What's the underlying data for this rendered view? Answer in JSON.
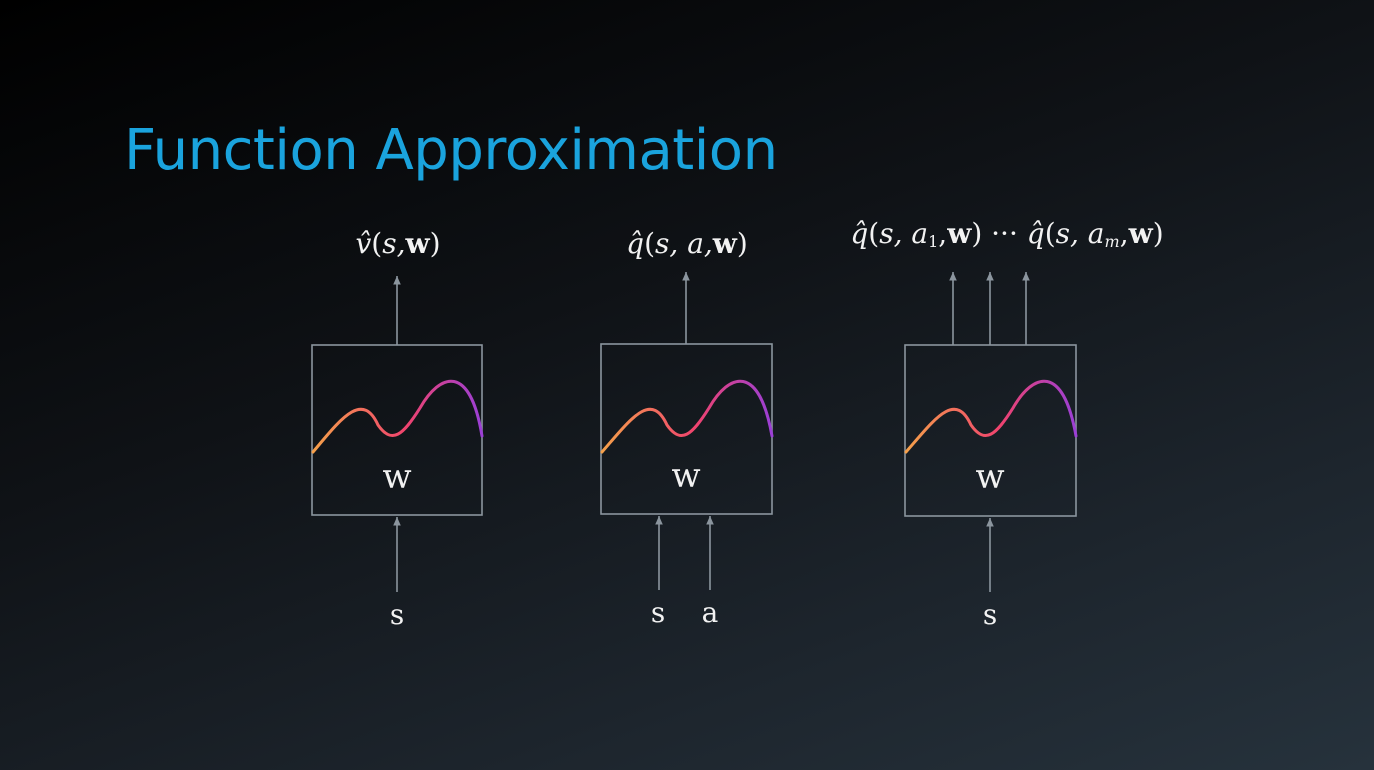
{
  "title": "Function Approximation",
  "diagrams": [
    {
      "name": "state-value",
      "output": {
        "fn": "v",
        "args": "s,",
        "weight": "w",
        "close": ")"
      },
      "box_label": "w",
      "inputs": [
        "s"
      ]
    },
    {
      "name": "action-value",
      "output": {
        "fn": "q",
        "args": "s, a,",
        "weight": "w",
        "close": ")"
      },
      "box_label": "w",
      "inputs": [
        "s",
        "a"
      ]
    },
    {
      "name": "multi-action-value",
      "output_first": {
        "fn": "q",
        "args": "s, a",
        "sub": "1",
        "comma": ",",
        "weight": "w",
        "close": ")"
      },
      "ellipsis": "···",
      "output_last": {
        "fn": "q",
        "args": "s, a",
        "sub": "m",
        "comma": ",",
        "weight": "w",
        "close": ")"
      },
      "box_label": "w",
      "inputs": [
        "s"
      ]
    }
  ],
  "colors": {
    "title": "#1aa3dd",
    "curve_start": "#f5a04a",
    "curve_mid": "#f0436e",
    "curve_end": "#9b3fd6",
    "box_stroke": "#8b959e"
  }
}
